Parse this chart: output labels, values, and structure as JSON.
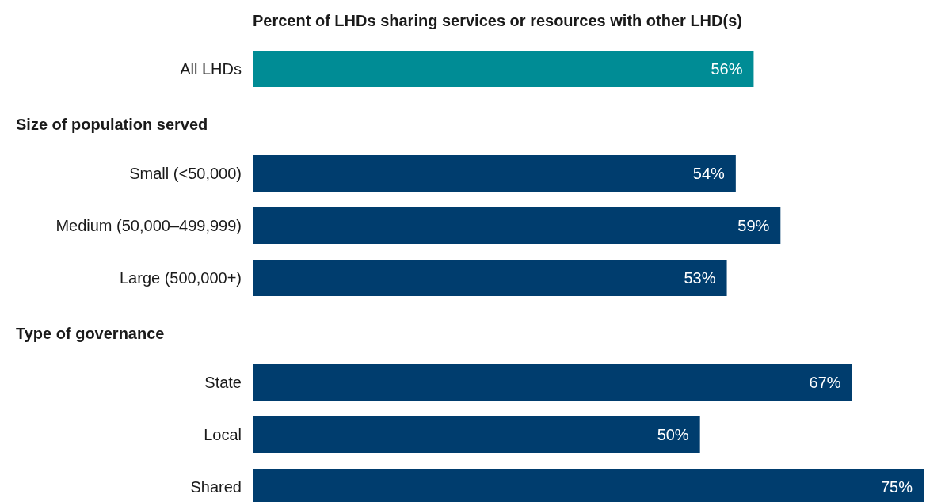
{
  "chart_data": {
    "type": "bar",
    "orientation": "horizontal",
    "title": "Percent of LHDs sharing services or resources with other LHD(s)",
    "categories": [
      "All LHDs",
      "Small (<50,000)",
      "Medium (50,000–499,999)",
      "Large (500,000+)",
      "State",
      "Local",
      "Shared"
    ],
    "values": [
      56,
      54,
      59,
      53,
      67,
      50,
      75
    ],
    "value_labels": [
      "56%",
      "54%",
      "59%",
      "53%",
      "67%",
      "50%",
      "75%"
    ],
    "colors": [
      "#008c95",
      "#003d6e",
      "#003d6e",
      "#003d6e",
      "#003d6e",
      "#003d6e",
      "#003d6e"
    ],
    "annotations": [
      "Size of population served",
      "Type of governance"
    ]
  }
}
